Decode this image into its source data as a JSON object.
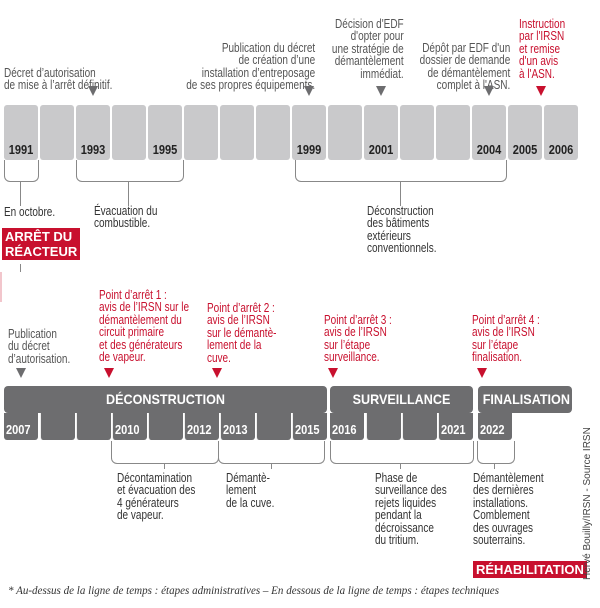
{
  "colors": {
    "red": "#c8102e",
    "dark_gray": "#6d6d6f",
    "light_gray": "#c9c9cb"
  },
  "top_timeline": {
    "years": [
      "1991",
      "",
      "1993",
      "",
      "1995",
      "",
      "",
      "",
      "1999",
      "",
      "2001",
      "",
      "",
      "2004",
      "2005",
      "2006"
    ],
    "above": {
      "decret": "Décret d’autorisation\nde mise à l’arrêt définitif.",
      "publication": "Publication du décret\nde création d’une\ninstallation d’entreposage\nde ses propres équipements.",
      "decision": "Décision d'EDF\nd'opter pour\nune stratégie de\ndémantèlement\nimmédiat.",
      "depot": "Dépôt par EDF d'un\ndossier de demande\nde démantèlement\ncomplet à l'ASN.",
      "instruction": "Instruction\npar l'IRSN\net remise\nd'un avis\nà l'ASN."
    },
    "below": {
      "octobre": "En octobre.",
      "arret_badge": "ARRÊT DU\nRÉACTEUR",
      "evacuation": "Évacuation du\ncombustible.",
      "deconstruction_batiments": "Déconstruction\ndes bâtiments\nextérieurs\nconventionnels."
    }
  },
  "bottom_timeline": {
    "phases": [
      {
        "label": "DÉCONSTRUCTION",
        "years": [
          "2007",
          "",
          "",
          "2010",
          "",
          "2012",
          "2013",
          "",
          "2015"
        ]
      },
      {
        "label": "SURVEILLANCE",
        "years": [
          "2016",
          "",
          "",
          "2021"
        ]
      },
      {
        "label": "FINALISATION",
        "years": [
          "2022"
        ]
      }
    ],
    "above": {
      "publication": "Publication\ndu décret\nd’autorisation.",
      "point1": "Point d’arrêt 1 :\navis de l’IRSN sur le\ndémantèlement du\ncircuit primaire\net des générateurs\nde vapeur.",
      "point2": "Point d’arrêt 2 :\navis de l’IRSN\nsur le démantè-\nlement de la\ncuve.",
      "point3": "Point d’arrêt 3 :\navis de l’IRSN\nsur l’étape\nsurveillance.",
      "point4": "Point d’arrêt 4 :\navis de l’IRSN\nsur l’étape\nfinalisation."
    },
    "below": {
      "decontamination": "Décontamination\net évacuation des\n4 générateurs\nde vapeur.",
      "cuve": "Démantè-\nlement\nde la cuve.",
      "phase": "Phase de\nsurveillance des\nrejets liquides\npendant la\ndécroissance\ndu tritium.",
      "dernieres": "Démantèlement\ndes dernières\ninstallations.\nComblement\ndes ouvrages\nsouterrains.",
      "rehab_badge": "RÉHABILITATION"
    }
  },
  "credit": "Hervé Bouilly/IRSN - Source IRSN",
  "footnote": "* Au-dessus de la ligne de temps : étapes administratives – En dessous de la ligne de temps : étapes techniques"
}
